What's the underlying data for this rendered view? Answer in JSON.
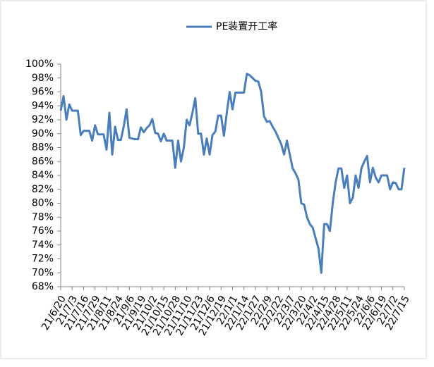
{
  "chart_data": {
    "type": "line",
    "categories": [
      "21/6/20",
      null,
      null,
      null,
      "21/7/3",
      null,
      null,
      null,
      "21/7/16",
      null,
      null,
      null,
      "21/7/29",
      null,
      null,
      null,
      "21/8/11",
      null,
      null,
      null,
      "21/8/24",
      null,
      null,
      null,
      "21/9/6",
      null,
      null,
      null,
      "21/9/19",
      null,
      null,
      null,
      "21/10/2",
      null,
      null,
      null,
      "21/10/15",
      null,
      null,
      null,
      "21/10/28",
      null,
      null,
      null,
      "21/11/10",
      null,
      null,
      null,
      "21/11/23",
      null,
      null,
      null,
      "21/12/6",
      null,
      null,
      null,
      "21/12/19",
      null,
      null,
      null,
      "22/1/1",
      null,
      null,
      null,
      "22/1/14",
      null,
      null,
      null,
      "22/1/27",
      null,
      null,
      null,
      "22/2/9",
      null,
      null,
      null,
      "22/2/22",
      null,
      null,
      null,
      "22/3/7",
      null,
      null,
      null,
      "22/3/20",
      null,
      null,
      null,
      "22/4/2",
      null,
      null,
      null,
      "22/4/15",
      null,
      null,
      null,
      "22/4/28",
      null,
      null,
      null,
      "22/5/11",
      null,
      null,
      null,
      "22/5/24",
      null,
      null,
      null,
      "22/6/6",
      null,
      null,
      null,
      "22/6/19",
      null,
      null,
      null,
      "22/7/2",
      null,
      null,
      null,
      "22/7/15"
    ],
    "series": [
      {
        "name": "PE装置开工率",
        "color": "#4a7ebb",
        "values": [
          93.3,
          95.4,
          92.0,
          94.2,
          93.3,
          93.3,
          93.3,
          89.8,
          90.4,
          90.4,
          90.4,
          89.0,
          91.2,
          89.9,
          89.9,
          89.9,
          87.7,
          93.0,
          87.0,
          91.0,
          89.1,
          89.1,
          91.0,
          93.5,
          89.4,
          89.3,
          89.2,
          89.2,
          90.9,
          90.2,
          90.8,
          91.2,
          92.1,
          90.1,
          90.0,
          88.9,
          90.0,
          89.0,
          89.0,
          89.0,
          85.1,
          89.0,
          86.0,
          88.0,
          92.0,
          91.2,
          93.0,
          95.1,
          90.0,
          90.0,
          87.0,
          89.3,
          87.0,
          89.8,
          90.3,
          92.6,
          92.6,
          89.7,
          93.0,
          96.0,
          93.5,
          95.9,
          95.9,
          95.9,
          95.9,
          98.6,
          98.4,
          98.0,
          97.6,
          97.5,
          96.0,
          92.5,
          91.7,
          91.8,
          91.0,
          90.3,
          89.4,
          88.5,
          87.0,
          89.0,
          87.0,
          85.0,
          84.3,
          83.4,
          80.0,
          79.8,
          78.0,
          77.0,
          76.5,
          75.0,
          73.5,
          70.0,
          77.0,
          77.0,
          76.0,
          80.0,
          83.0,
          85.0,
          85.0,
          82.2,
          84.0,
          80.0,
          80.8,
          84.0,
          82.2,
          85.0,
          86.0,
          86.8,
          83.0,
          85.1,
          83.7,
          83.0,
          84.0,
          84.0,
          84.0,
          82.0,
          83.0,
          82.9,
          82.0,
          82.0,
          85.1
        ]
      }
    ],
    "ylim": [
      68,
      100
    ],
    "yticks": [
      {
        "value": 68,
        "label": "68%"
      },
      {
        "value": 70,
        "label": "70%"
      },
      {
        "value": 72,
        "label": "72%"
      },
      {
        "value": 74,
        "label": "74%"
      },
      {
        "value": 76,
        "label": "76%"
      },
      {
        "value": 78,
        "label": "78%"
      },
      {
        "value": 80,
        "label": "80%"
      },
      {
        "value": 82,
        "label": "82%"
      },
      {
        "value": 84,
        "label": "84%"
      },
      {
        "value": 86,
        "label": "86%"
      },
      {
        "value": 88,
        "label": "88%"
      },
      {
        "value": 90,
        "label": "90%"
      },
      {
        "value": 92,
        "label": "92%"
      },
      {
        "value": 94,
        "label": "94%"
      },
      {
        "value": 96,
        "label": "96%"
      },
      {
        "value": 98,
        "label": "98%"
      },
      {
        "value": 100,
        "label": "100%"
      }
    ],
    "legend": "top"
  }
}
